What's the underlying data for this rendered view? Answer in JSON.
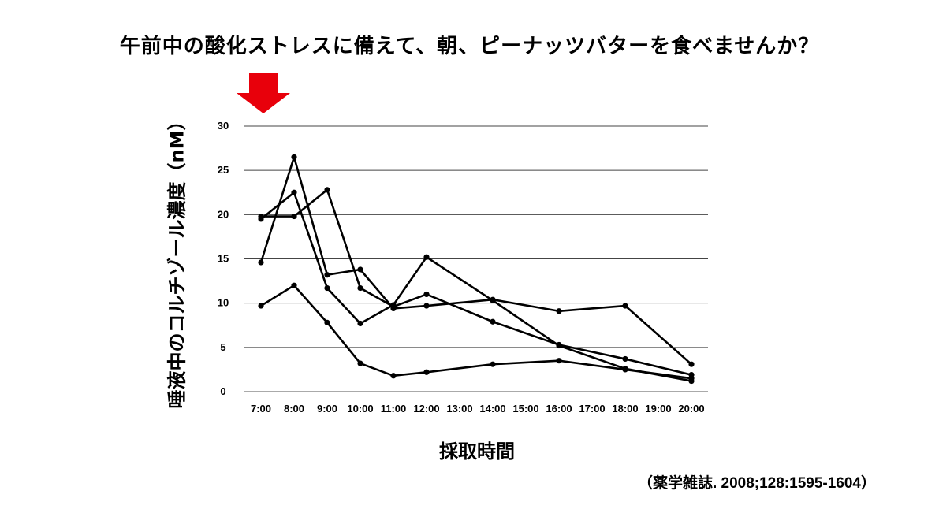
{
  "title": "午前中の酸化ストレスに備えて、朝、ピーナッツバターを食べませんか？",
  "source": "（薬学雑誌. 2008;128:1595-1604）",
  "arrow_color": "#e8000b",
  "chart_data": {
    "type": "line",
    "ylabel": "唾液中のコルチゾール濃度（nM）",
    "xlabel": "採取時間",
    "ylim": [
      0,
      30
    ],
    "yticks": [
      0,
      5,
      10,
      15,
      20,
      25,
      30
    ],
    "categories": [
      "7:00",
      "8:00",
      "9:00",
      "10:00",
      "11:00",
      "12:00",
      "13:00",
      "14:00",
      "15:00",
      "16:00",
      "17:00",
      "18:00",
      "19:00",
      "20:00"
    ],
    "grid": true,
    "line_color": "#000000",
    "series": [
      {
        "x": [
          "7:00",
          "8:00",
          "9:00",
          "10:00",
          "11:00",
          "12:00",
          "14:00",
          "16:00",
          "18:00",
          "20:00"
        ],
        "values": [
          14.6,
          26.5,
          13.2,
          13.8,
          9.4,
          9.7,
          10.4,
          9.1,
          9.7,
          3.1
        ]
      },
      {
        "x": [
          "7:00",
          "8:00",
          "9:00",
          "10:00",
          "11:00",
          "12:00",
          "14:00",
          "16:00",
          "18:00",
          "20:00"
        ],
        "values": [
          19.5,
          22.5,
          11.7,
          7.7,
          9.8,
          15.2,
          10.3,
          5.2,
          2.6,
          1.2
        ]
      },
      {
        "x": [
          "7:00",
          "8:00",
          "9:00",
          "10:00",
          "11:00",
          "12:00",
          "14:00",
          "16:00",
          "18:00",
          "20:00"
        ],
        "values": [
          19.8,
          19.8,
          22.8,
          11.7,
          9.6,
          11.0,
          7.9,
          5.3,
          3.7,
          1.9
        ]
      },
      {
        "x": [
          "7:00",
          "8:00",
          "9:00",
          "10:00",
          "11:00",
          "12:00",
          "14:00",
          "16:00",
          "18:00",
          "20:00"
        ],
        "values": [
          9.7,
          12.0,
          7.8,
          3.2,
          1.8,
          2.2,
          3.1,
          3.5,
          2.5,
          1.5
        ]
      }
    ]
  }
}
